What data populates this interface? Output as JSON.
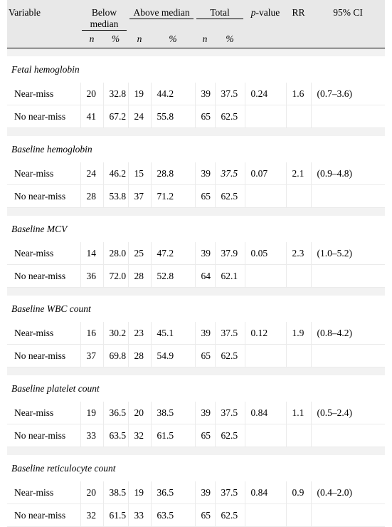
{
  "header": {
    "variable": "Variable",
    "below_median": "Below median",
    "above_median": "Above median",
    "total": "Total",
    "p_value_p": "p",
    "p_value_rest": "-value",
    "rr": "RR",
    "ci": "95% CI",
    "n": "n",
    "pct": "%"
  },
  "sections": [
    {
      "title": "Fetal hemoglobin",
      "rows": [
        {
          "label": "Near-miss",
          "bn": "20",
          "bp": "32.8",
          "an": "19",
          "ap": "44.2",
          "tn": "39",
          "tp": "37.5",
          "p": "0.24",
          "rr": "1.6",
          "ci": "(0.7–3.6)"
        },
        {
          "label": "No near-miss",
          "bn": "41",
          "bp": "67.2",
          "an": "24",
          "ap": "55.8",
          "tn": "65",
          "tp": "62.5",
          "p": "",
          "rr": "",
          "ci": ""
        }
      ]
    },
    {
      "title": "Baseline hemoglobin",
      "rows": [
        {
          "label": "Near-miss",
          "bn": "24",
          "bp": "46.2",
          "an": "15",
          "ap": "28.8",
          "tn": "39",
          "tp": "37.5",
          "p": "0.07",
          "rr": "2.1",
          "ci": "(0.9–4.8)"
        },
        {
          "label": "No near-miss",
          "bn": "28",
          "bp": "53.8",
          "an": "37",
          "ap": "71.2",
          "tn": "65",
          "tp": "62.5",
          "p": "",
          "rr": "",
          "ci": ""
        }
      ]
    },
    {
      "title": "Baseline MCV",
      "rows": [
        {
          "label": "Near-miss",
          "bn": "14",
          "bp": "28.0",
          "an": "25",
          "ap": "47.2",
          "tn": "39",
          "tp": "37.9",
          "p": "0.05",
          "rr": "2.3",
          "ci": "(1.0–5.2)"
        },
        {
          "label": "No near-miss",
          "bn": "36",
          "bp": "72.0",
          "an": "28",
          "ap": "52.8",
          "tn": "64",
          "tp": "62.1",
          "p": "",
          "rr": "",
          "ci": ""
        }
      ]
    },
    {
      "title": "Baseline WBC count",
      "rows": [
        {
          "label": "Near-miss",
          "bn": "16",
          "bp": "30.2",
          "an": "23",
          "ap": "45.1",
          "tn": "39",
          "tp": "37.5",
          "p": "0.12",
          "rr": "1.9",
          "ci": "(0.8–4.2)"
        },
        {
          "label": "No near-miss",
          "bn": "37",
          "bp": "69.8",
          "an": "28",
          "ap": "54.9",
          "tn": "65",
          "tp": "62.5",
          "p": "",
          "rr": "",
          "ci": ""
        }
      ]
    },
    {
      "title": "Baseline platelet count",
      "rows": [
        {
          "label": "Near-miss",
          "bn": "19",
          "bp": "36.5",
          "an": "20",
          "ap": "38.5",
          "tn": "39",
          "tp": "37.5",
          "p": "0.84",
          "rr": "1.1",
          "ci": "(0.5–2.4)"
        },
        {
          "label": "No near-miss",
          "bn": "33",
          "bp": "63.5",
          "an": "32",
          "ap": "61.5",
          "tn": "65",
          "tp": "62.5",
          "p": "",
          "rr": "",
          "ci": ""
        }
      ]
    },
    {
      "title": "Baseline reticulocyte count",
      "rows": [
        {
          "label": "Near-miss",
          "bn": "20",
          "bp": "38.5",
          "an": "19",
          "ap": "36.5",
          "tn": "39",
          "tp": "37.5",
          "p": "0.84",
          "rr": "0.9",
          "ci": "(0.4–2.0)"
        },
        {
          "label": "No near-miss",
          "bn": "32",
          "bp": "61.5",
          "an": "33",
          "ap": "63.5",
          "tn": "65",
          "tp": "62.5",
          "p": "",
          "rr": "",
          "ci": ""
        }
      ]
    }
  ]
}
